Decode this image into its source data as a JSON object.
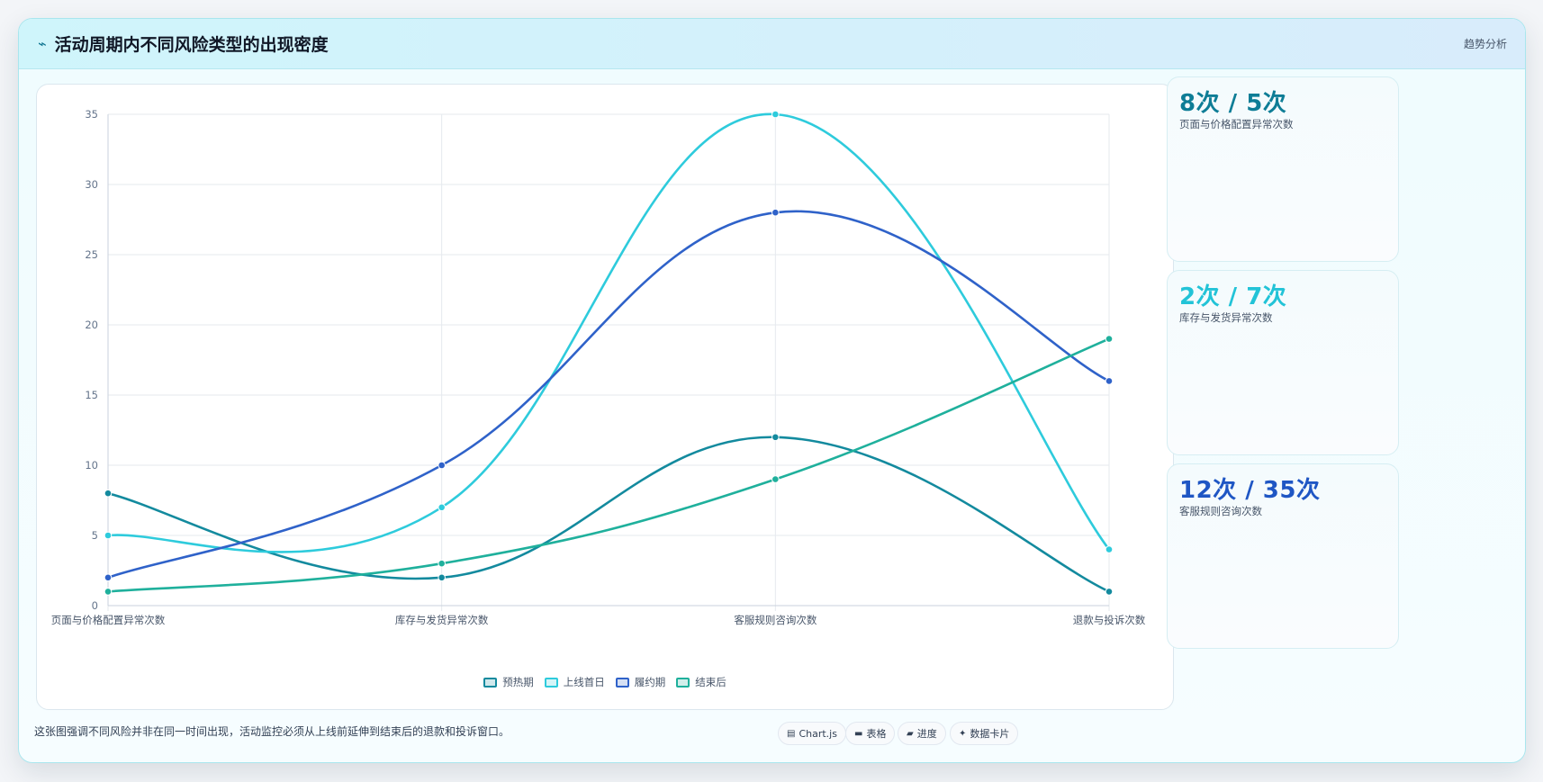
{
  "header": {
    "icon": "trend-icon",
    "title": "活动周期内不同风险类型的出现密度",
    "right_label": "趋势分析"
  },
  "chart_data": {
    "type": "line",
    "categories": [
      "页面与价格配置异常次数",
      "库存与发货异常次数",
      "客服规则咨询次数",
      "退款与投诉次数"
    ],
    "series": [
      {
        "name": "预热期",
        "values": [
          8,
          2,
          12,
          1
        ],
        "color": "#138a9e"
      },
      {
        "name": "上线首日",
        "values": [
          5,
          7,
          35,
          4
        ],
        "color": "#2ecbdc"
      },
      {
        "name": "履约期",
        "values": [
          2,
          10,
          28,
          16
        ],
        "color": "#2f62c9"
      },
      {
        "name": "结束后",
        "values": [
          1,
          3,
          9,
          19
        ],
        "color": "#1fb09c"
      }
    ],
    "y_ticks": [
      0,
      5,
      10,
      15,
      20,
      25,
      30,
      35
    ],
    "ylim": [
      0,
      35
    ],
    "grid": true,
    "legend_position": "bottom",
    "smooth": true
  },
  "stats": [
    {
      "value": "8次 / 5次",
      "label": "页面与价格配置异常次数",
      "color": "#0e7d96"
    },
    {
      "value": "2次 / 7次",
      "label": "库存与发货异常次数",
      "color": "#22c3d7"
    },
    {
      "value": "12次 / 35次",
      "label": "客服规则咨询次数",
      "color": "#1f56c4"
    }
  ],
  "footer": {
    "note": "这张图强调不同风险并非在同一时间出现，活动监控必须从上线前延伸到结束后的退款和投诉窗口。",
    "chips": [
      {
        "icon": "chart-icon",
        "label": "Chart.js"
      },
      {
        "icon": "table-icon",
        "label": "表格"
      },
      {
        "icon": "progress-icon",
        "label": "进度"
      },
      {
        "icon": "card-icon",
        "label": "数据卡片"
      }
    ]
  }
}
